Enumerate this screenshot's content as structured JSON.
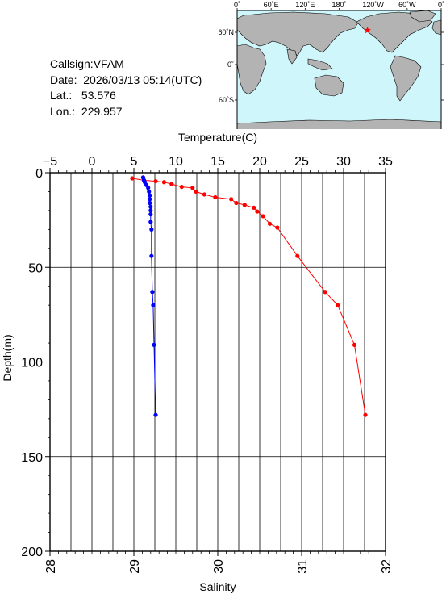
{
  "station": {
    "callsign_label": "Callsign:",
    "callsign": "VFAM",
    "date_label": "Date:",
    "date": "2026/03/13 05:14(UTC)",
    "lat_label": "Lat.:",
    "lat": "53.576",
    "lon_label": "Lon.:",
    "lon": "229.957"
  },
  "map": {
    "top_ticks": [
      "0˚",
      "60˚E",
      "120˚E",
      "180˚",
      "120˚W",
      "60˚W",
      "0˚"
    ],
    "left_ticks": [
      "60˚N",
      "0˚",
      "60˚S"
    ],
    "ocean_color": "#cff6fb",
    "land_color": "#b3b3b3",
    "marker_color": "#ff0000",
    "marker": {
      "lon": 229.957,
      "lat": 53.576
    }
  },
  "chart_data": {
    "type": "line",
    "ylabel": "Depth(m)",
    "ylim": [
      200,
      0
    ],
    "y_ticks": [
      "0",
      "50",
      "100",
      "150",
      "200"
    ],
    "grid": true,
    "x_axes": [
      {
        "position": "top",
        "label": "Temperature(C)",
        "range": [
          -5,
          35
        ],
        "ticks": [
          "−5",
          "0",
          "5",
          "10",
          "15",
          "20",
          "25",
          "30",
          "35"
        ],
        "color": "#ff0000"
      },
      {
        "position": "bottom",
        "label": "Salinity",
        "range": [
          28,
          32
        ],
        "ticks": [
          "28",
          "29",
          "30",
          "31",
          "32"
        ],
        "color": "#0000ff"
      }
    ],
    "series": [
      {
        "axis": "top",
        "color": "#ff0000",
        "points": [
          [
            4.8,
            3
          ],
          [
            6.2,
            4
          ],
          [
            7.6,
            4.5
          ],
          [
            8.6,
            5
          ],
          [
            9.5,
            6
          ],
          [
            10.7,
            7.5
          ],
          [
            12.0,
            8
          ],
          [
            12.4,
            10
          ],
          [
            13.4,
            11.5
          ],
          [
            14.7,
            13
          ],
          [
            16.6,
            14
          ],
          [
            17.2,
            16
          ],
          [
            18.2,
            17
          ],
          [
            19.3,
            18.5
          ],
          [
            19.7,
            20.5
          ],
          [
            20.4,
            23
          ],
          [
            21.2,
            27
          ],
          [
            22.1,
            29
          ],
          [
            24.5,
            44
          ],
          [
            27.8,
            63
          ],
          [
            29.3,
            70
          ],
          [
            31.3,
            91
          ],
          [
            32.6,
            128
          ]
        ]
      },
      {
        "axis": "bottom",
        "color": "#0000ff",
        "points": [
          [
            29.11,
            2.5
          ],
          [
            29.12,
            4
          ],
          [
            29.13,
            5
          ],
          [
            29.15,
            6.5
          ],
          [
            29.17,
            8
          ],
          [
            29.18,
            10
          ],
          [
            29.19,
            12
          ],
          [
            29.19,
            14
          ],
          [
            29.19,
            16
          ],
          [
            29.2,
            18
          ],
          [
            29.2,
            20
          ],
          [
            29.2,
            22
          ],
          [
            29.2,
            26
          ],
          [
            29.21,
            30
          ],
          [
            29.21,
            44
          ],
          [
            29.22,
            63
          ],
          [
            29.23,
            70
          ],
          [
            29.24,
            91
          ],
          [
            29.26,
            128
          ]
        ]
      }
    ]
  }
}
